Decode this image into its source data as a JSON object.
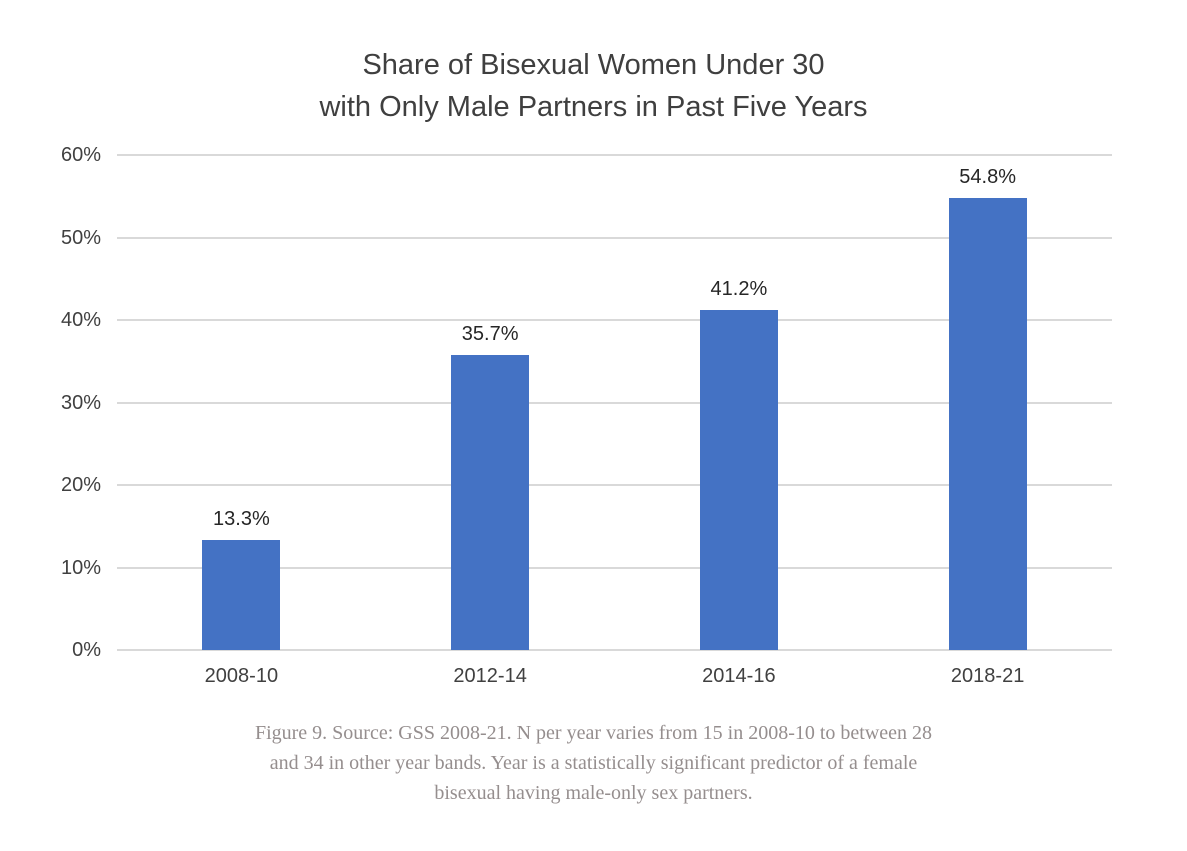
{
  "colors": {
    "title_color": "#3f3f3f",
    "axis_label_color": "#404040",
    "data_label_color": "#262626",
    "caption_color": "#958e8e",
    "gridline_color": "#d9d9d9",
    "bar_color": "#4472c4",
    "bg_color": "#ffffff"
  },
  "chart_data": {
    "type": "bar",
    "title": "Share of Bisexual Women Under 30 with Only Male Partners in Past Five Years",
    "title_lines": [
      "Share of Bisexual Women Under 30",
      "with Only Male Partners in Past Five Years"
    ],
    "categories": [
      "2008-10",
      "2012-14",
      "2014-16",
      "2018-21"
    ],
    "values": [
      13.3,
      35.7,
      41.2,
      54.8
    ],
    "data_labels": [
      "13.3%",
      "35.7%",
      "41.2%",
      "54.8%"
    ],
    "xlabel": "",
    "ylabel": "",
    "ylim": [
      0,
      60
    ],
    "yticks": [
      {
        "value": 0,
        "label": "0%"
      },
      {
        "value": 10,
        "label": "10%"
      },
      {
        "value": 20,
        "label": "20%"
      },
      {
        "value": 30,
        "label": "30%"
      },
      {
        "value": 40,
        "label": "40%"
      },
      {
        "value": 50,
        "label": "50%"
      },
      {
        "value": 60,
        "label": "60%"
      }
    ],
    "grid": true,
    "legend": false,
    "bar_color": "#4472c4",
    "gridline_color": "#d9d9d9"
  },
  "caption": {
    "lines": [
      "Figure 9. Source: GSS 2008-21. N per year varies from 15 in 2008-10 to between 28",
      "and 34 in other year bands. Year is a statistically significant predictor of a female",
      "bisexual having male-only sex partners."
    ]
  }
}
